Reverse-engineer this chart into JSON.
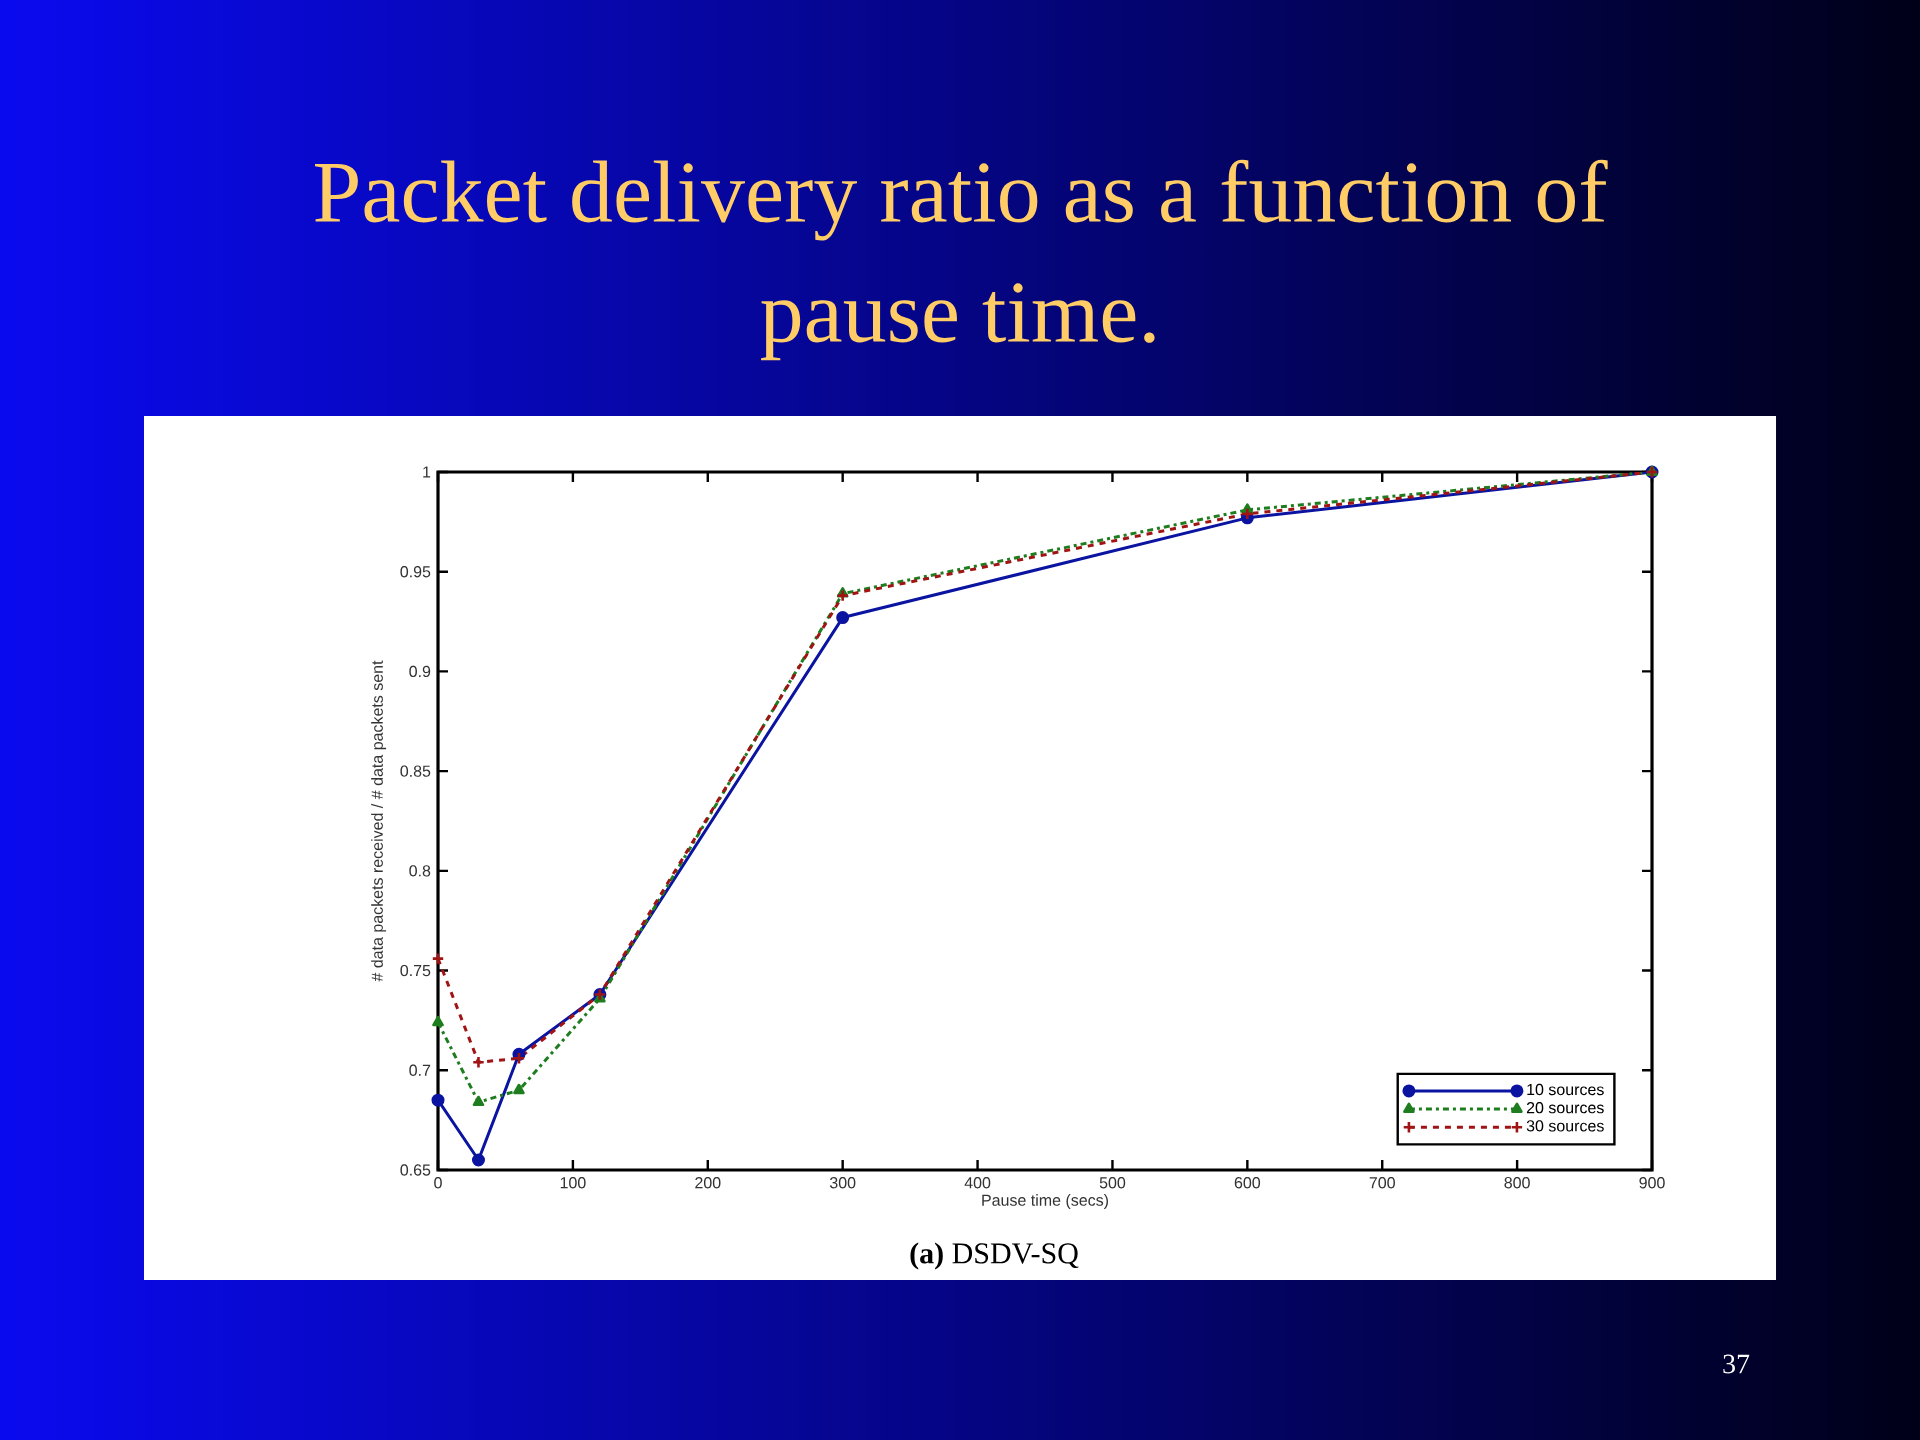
{
  "chart_data": {
    "type": "line",
    "title": "Packet delivery ratio as a function of pause time.",
    "xlabel": "Pause time (secs)",
    "ylabel": "# data packets received / # data packets sent",
    "annotations": [
      "**(a)** DSDV-SQ",
      "37"
    ],
    "x": [
      0,
      30,
      60,
      120,
      300,
      600,
      900
    ],
    "series": [
      {
        "name": "10 sources",
        "color": "#0a14a0",
        "marker": "circle",
        "line_style": "solid",
        "values": [
          0.685,
          0.655,
          0.708,
          0.738,
          0.927,
          0.977,
          1
        ]
      },
      {
        "name": "20 sources",
        "color": "#1e7d1e",
        "marker": "triangle",
        "line_style": "dashdot",
        "values": [
          0.724,
          0.684,
          0.69,
          0.736,
          0.939,
          0.981,
          1
        ]
      },
      {
        "name": "30 sources",
        "color": "#a01414",
        "marker": "cross",
        "line_style": "dashed",
        "values": [
          0.756,
          0.704,
          0.706,
          0.738,
          0.938,
          0.979,
          1
        ]
      }
    ],
    "xlim": [
      0,
      900
    ],
    "ylim": [
      0.65,
      1
    ],
    "xticks": [
      0,
      100,
      200,
      300,
      400,
      500,
      600,
      700,
      800,
      900
    ],
    "yticks": [
      0.65,
      0.7,
      0.75,
      0.8,
      0.85,
      0.9,
      0.95,
      1
    ],
    "legend": "bottom right"
  }
}
